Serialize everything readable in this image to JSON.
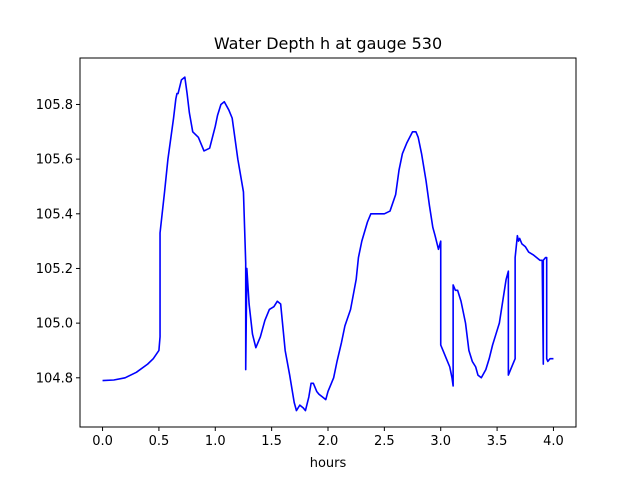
{
  "chart_data": {
    "type": "line",
    "title": "Water Depth h at gauge 530",
    "xlabel": "hours",
    "ylabel": "",
    "xlim": [
      -0.2,
      4.2
    ],
    "ylim": [
      104.62,
      105.97
    ],
    "xticks": [
      {
        "value": 0.0,
        "label": "0.0"
      },
      {
        "value": 0.5,
        "label": "0.5"
      },
      {
        "value": 1.0,
        "label": "1.0"
      },
      {
        "value": 1.5,
        "label": "1.5"
      },
      {
        "value": 2.0,
        "label": "2.0"
      },
      {
        "value": 2.5,
        "label": "2.5"
      },
      {
        "value": 3.0,
        "label": "3.0"
      },
      {
        "value": 3.5,
        "label": "3.5"
      },
      {
        "value": 4.0,
        "label": "4.0"
      }
    ],
    "yticks": [
      {
        "value": 104.8,
        "label": "104.8"
      },
      {
        "value": 105.0,
        "label": "105.0"
      },
      {
        "value": 105.2,
        "label": "105.2"
      },
      {
        "value": 105.4,
        "label": "105.4"
      },
      {
        "value": 105.6,
        "label": "105.6"
      },
      {
        "value": 105.8,
        "label": "105.8"
      }
    ],
    "grid": false,
    "series": [
      {
        "color": "#0000ff",
        "x": [
          0.0,
          0.1,
          0.2,
          0.3,
          0.4,
          0.45,
          0.5,
          0.51,
          0.51,
          0.55,
          0.58,
          0.6,
          0.63,
          0.65,
          0.66,
          0.67,
          0.7,
          0.73,
          0.75,
          0.77,
          0.8,
          0.85,
          0.9,
          0.95,
          1.0,
          1.02,
          1.05,
          1.08,
          1.12,
          1.15,
          1.2,
          1.25,
          1.26,
          1.27,
          1.27,
          1.28,
          1.3,
          1.33,
          1.36,
          1.4,
          1.44,
          1.48,
          1.52,
          1.55,
          1.58,
          1.62,
          1.66,
          1.7,
          1.72,
          1.75,
          1.78,
          1.8,
          1.83,
          1.85,
          1.87,
          1.9,
          1.92,
          1.95,
          1.98,
          2.0,
          2.03,
          2.05,
          2.08,
          2.12,
          2.15,
          2.2,
          2.25,
          2.27,
          2.3,
          2.35,
          2.38,
          2.4,
          2.45,
          2.5,
          2.55,
          2.6,
          2.63,
          2.66,
          2.7,
          2.75,
          2.78,
          2.8,
          2.83,
          2.87,
          2.9,
          2.93,
          2.95,
          2.98,
          3.0,
          3.0,
          3.02,
          3.05,
          3.08,
          3.1,
          3.11,
          3.11,
          3.13,
          3.15,
          3.18,
          3.22,
          3.25,
          3.28,
          3.31,
          3.33,
          3.36,
          3.4,
          3.43,
          3.46,
          3.49,
          3.52,
          3.55,
          3.58,
          3.6,
          3.6,
          3.62,
          3.66,
          3.66,
          3.67,
          3.68,
          3.69,
          3.7,
          3.72,
          3.75,
          3.78,
          3.82,
          3.85,
          3.88,
          3.9,
          3.91,
          3.91,
          3.93,
          3.94,
          3.94,
          3.95,
          3.97,
          4.0
        ],
        "y": [
          104.79,
          104.792,
          104.8,
          104.82,
          104.85,
          104.87,
          104.9,
          104.95,
          105.33,
          105.48,
          105.6,
          105.66,
          105.75,
          105.82,
          105.84,
          105.84,
          105.89,
          105.9,
          105.84,
          105.77,
          105.7,
          105.68,
          105.63,
          105.64,
          105.72,
          105.76,
          105.8,
          105.81,
          105.78,
          105.75,
          105.6,
          105.48,
          105.35,
          105.22,
          104.83,
          105.2,
          105.07,
          104.96,
          104.91,
          104.95,
          105.01,
          105.05,
          105.06,
          105.08,
          105.07,
          104.9,
          104.81,
          104.71,
          104.68,
          104.7,
          104.69,
          104.68,
          104.73,
          104.78,
          104.78,
          104.75,
          104.74,
          104.73,
          104.72,
          104.75,
          104.78,
          104.8,
          104.86,
          104.93,
          104.99,
          105.05,
          105.16,
          105.24,
          105.3,
          105.37,
          105.4,
          105.4,
          105.4,
          105.4,
          105.41,
          105.47,
          105.56,
          105.62,
          105.66,
          105.7,
          105.7,
          105.68,
          105.62,
          105.52,
          105.43,
          105.35,
          105.32,
          105.27,
          105.3,
          104.92,
          104.9,
          104.87,
          104.84,
          104.8,
          104.77,
          105.14,
          105.12,
          105.12,
          105.08,
          105.0,
          104.9,
          104.86,
          104.84,
          104.81,
          104.8,
          104.83,
          104.87,
          104.92,
          104.96,
          105.0,
          105.08,
          105.16,
          105.19,
          104.81,
          104.83,
          104.87,
          105.24,
          105.28,
          105.32,
          105.3,
          105.31,
          105.29,
          105.28,
          105.26,
          105.25,
          105.24,
          105.23,
          105.23,
          104.85,
          105.23,
          105.24,
          105.24,
          104.87,
          104.86,
          104.87,
          104.87
        ]
      }
    ]
  }
}
